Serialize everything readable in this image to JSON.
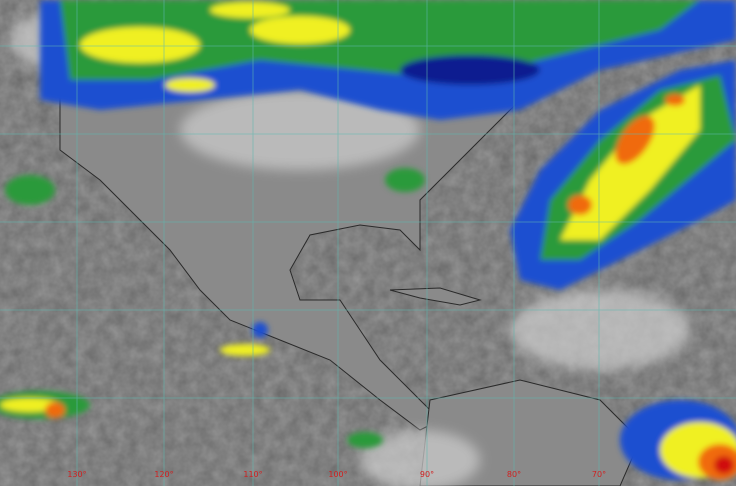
{
  "map": {
    "type": "infrared satellite image",
    "colors": {
      "background": "#6e6e6e",
      "land": "#8c8c8c",
      "cloud": "#c8c8c8",
      "grid": "#5fb8b0",
      "label": "#d02020",
      "green": "#2a9a3a",
      "yellow": "#f0f020",
      "blue": "#1e50d0",
      "orange": "#f06a10",
      "red": "#d01010"
    },
    "longitude_labels": [
      "130°",
      "120°",
      "110°",
      "100°",
      "90°",
      "80°",
      "70°"
    ]
  }
}
